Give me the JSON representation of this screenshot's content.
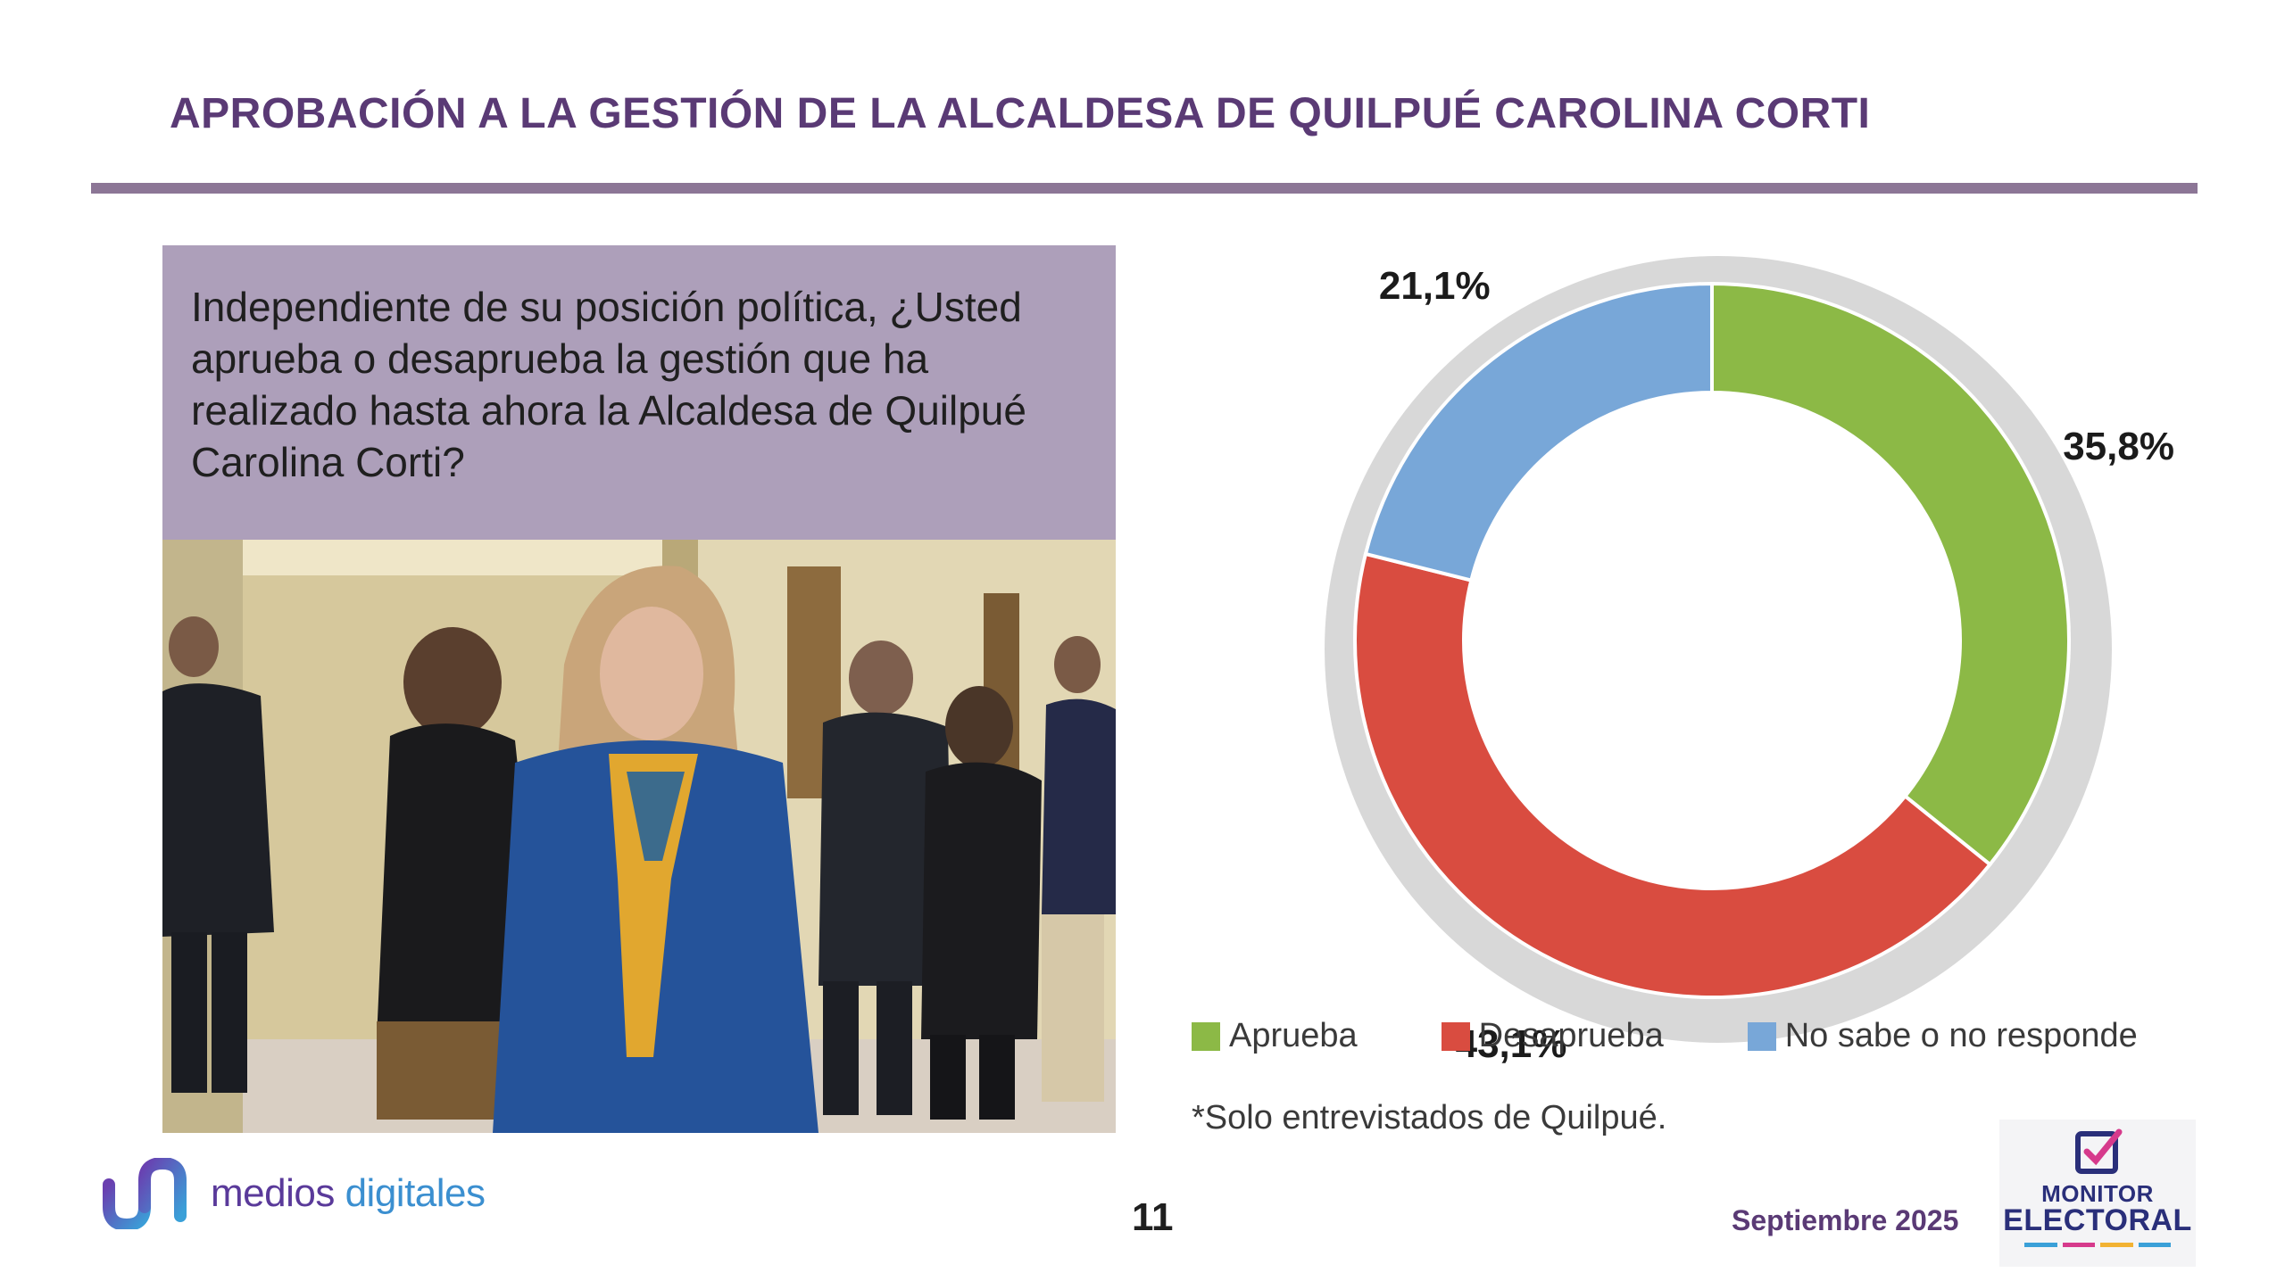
{
  "header": {
    "title": "APROBACIÓN A LA GESTIÓN DE LA ALCALDESA DE QUILPUÉ CAROLINA CORTI"
  },
  "question": {
    "text": "Independiente de su posición política, ¿Usted aprueba o desaprueba la gestión que ha realizado hasta ahora la Alcaldesa de Quilpué Carolina Corti?"
  },
  "chart_data": {
    "type": "pie",
    "style": "donut",
    "categories": [
      "Aprueba",
      "Desaprueba",
      "No sabe o no responde"
    ],
    "values": [
      35.8,
      43.1,
      21.1
    ],
    "value_labels": [
      "35,8%",
      "43,1%",
      "21,1%"
    ],
    "colors": [
      "#8cb946",
      "#d94c40",
      "#78a7d8"
    ],
    "legend_position": "bottom"
  },
  "footnote": "*Solo entrevistados de Quilpué.",
  "footer": {
    "page_number": "11",
    "date": "Septiembre 2025",
    "logo_left_prefix": "medios ",
    "logo_left_suffix": "digitales",
    "logo_right_line1": "MONITOR",
    "logo_right_line2": "ELECTORAL"
  }
}
